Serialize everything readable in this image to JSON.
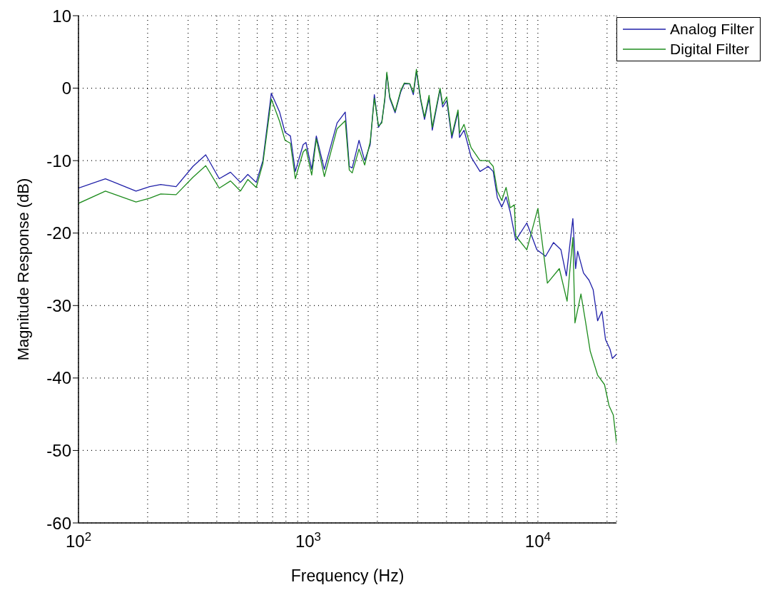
{
  "chart_data": {
    "type": "line",
    "xlabel": "Frequency (Hz)",
    "ylabel": "Magnitude Response (dB)",
    "log": "x",
    "grid": true,
    "legend": "top right",
    "line_style": "solid",
    "marker": "none",
    "xlim": [
      100,
      22000
    ],
    "ylim": [
      -60,
      10
    ],
    "xticks": [
      {
        "value": 100,
        "label": "10$^{2}$"
      },
      {
        "value": 200,
        "label": null
      },
      {
        "value": 300,
        "label": null
      },
      {
        "value": 400,
        "label": null
      },
      {
        "value": 500,
        "label": null
      },
      {
        "value": 600,
        "label": null
      },
      {
        "value": 700,
        "label": null
      },
      {
        "value": 800,
        "label": null
      },
      {
        "value": 900,
        "label": null
      },
      {
        "value": 1000,
        "label": "10$^{3}$"
      },
      {
        "value": 2000,
        "label": null
      },
      {
        "value": 3000,
        "label": null
      },
      {
        "value": 4000,
        "label": null
      },
      {
        "value": 5000,
        "label": null
      },
      {
        "value": 6000,
        "label": null
      },
      {
        "value": 7000,
        "label": null
      },
      {
        "value": 8000,
        "label": null
      },
      {
        "value": 9000,
        "label": null
      },
      {
        "value": 10000,
        "label": "10$^{4}$"
      },
      {
        "value": 20000,
        "label": null
      }
    ],
    "yticks": [
      -60,
      -50,
      -40,
      -30,
      -20,
      -10,
      0,
      10
    ],
    "series": [
      {
        "name": "Analog Filter",
        "color": "#1f1fa8",
        "x": [
          100,
          131,
          178,
          204,
          228,
          266,
          315,
          358,
          410,
          459,
          507,
          546,
          594,
          635,
          691,
          751,
          793,
          837,
          879,
          951,
          978,
          1036,
          1085,
          1176,
          1336,
          1450,
          1510,
          1555,
          1665,
          1762,
          1862,
          1941,
          2024,
          2092,
          2155,
          2200,
          2265,
          2390,
          2530,
          2620,
          2770,
          2870,
          2960,
          3090,
          3210,
          3360,
          3470,
          3750,
          3850,
          4010,
          4220,
          4490,
          4560,
          4770,
          4960,
          5120,
          5600,
          6080,
          6390,
          6660,
          6960,
          7270,
          7580,
          8010,
          8950,
          9900,
          10800,
          11700,
          12600,
          13300,
          14200,
          14600,
          14900,
          15800,
          16700,
          17400,
          18200,
          19000,
          19700,
          20600,
          21100,
          22000
        ],
        "values": [
          -13.8,
          -12.5,
          -14.2,
          -13.6,
          -13.3,
          -13.6,
          -10.8,
          -9.2,
          -12.5,
          -11.6,
          -13.0,
          -11.9,
          -13.0,
          -10.0,
          -0.7,
          -3.3,
          -6.1,
          -6.6,
          -11.5,
          -7.8,
          -7.5,
          -11.2,
          -6.6,
          -11.2,
          -4.8,
          -3.3,
          -10.8,
          -11.0,
          -7.2,
          -10.0,
          -7.8,
          -0.9,
          -5.4,
          -4.6,
          -1.7,
          2.0,
          -1.4,
          -3.4,
          -0.5,
          0.6,
          0.6,
          -0.9,
          2.3,
          -1.7,
          -4.3,
          -1.4,
          -5.8,
          -0.2,
          -2.6,
          -1.7,
          -6.9,
          -3.3,
          -6.8,
          -5.8,
          -7.8,
          -9.5,
          -11.5,
          -10.8,
          -11.5,
          -15.1,
          -16.4,
          -15.0,
          -17.1,
          -21.0,
          -18.6,
          -22.3,
          -23.2,
          -21.3,
          -22.3,
          -25.9,
          -18.0,
          -24.9,
          -22.5,
          -25.5,
          -26.5,
          -27.8,
          -32.1,
          -30.8,
          -34.7,
          -36.0,
          -37.3,
          -36.7
        ]
      },
      {
        "name": "Digital Filter",
        "color": "#1e8c1e",
        "x": [
          100,
          131,
          178,
          204,
          228,
          266,
          315,
          358,
          410,
          459,
          507,
          546,
          594,
          635,
          691,
          751,
          793,
          837,
          879,
          951,
          978,
          1036,
          1085,
          1176,
          1336,
          1450,
          1510,
          1555,
          1665,
          1762,
          1862,
          1941,
          2024,
          2092,
          2155,
          2200,
          2265,
          2390,
          2530,
          2620,
          2770,
          2870,
          2960,
          3090,
          3210,
          3360,
          3470,
          3750,
          3850,
          4010,
          4220,
          4490,
          4560,
          4770,
          4960,
          5120,
          5600,
          6080,
          6390,
          6660,
          6960,
          7270,
          7580,
          7900,
          8010,
          8950,
          10000,
          11000,
          12400,
          13400,
          14200,
          14500,
          15400,
          16100,
          16900,
          18200,
          19500,
          20400,
          21300,
          22000
        ],
        "values": [
          -15.9,
          -14.2,
          -15.7,
          -15.2,
          -14.6,
          -14.7,
          -12.3,
          -10.7,
          -13.8,
          -12.8,
          -14.2,
          -12.6,
          -13.7,
          -10.4,
          -1.5,
          -4.6,
          -7.2,
          -7.6,
          -12.5,
          -8.8,
          -8.4,
          -12.0,
          -7.0,
          -12.2,
          -5.6,
          -4.5,
          -11.3,
          -11.7,
          -8.4,
          -10.6,
          -7.4,
          -1.4,
          -5.2,
          -4.8,
          -1.4,
          2.2,
          -1.2,
          -3.2,
          -0.3,
          0.7,
          0.6,
          -0.6,
          2.6,
          -1.5,
          -4.0,
          -1.0,
          -5.4,
          0.0,
          -2.2,
          -1.2,
          -6.5,
          -3.0,
          -6.2,
          -5.0,
          -6.8,
          -8.2,
          -10.0,
          -10.0,
          -10.8,
          -14.2,
          -15.5,
          -13.7,
          -16.5,
          -16.1,
          -20.4,
          -22.3,
          -16.6,
          -26.9,
          -24.9,
          -29.4,
          -20.6,
          -32.4,
          -28.4,
          -32.1,
          -36.3,
          -39.6,
          -40.9,
          -43.8,
          -45.1,
          -49.0
        ]
      }
    ]
  }
}
